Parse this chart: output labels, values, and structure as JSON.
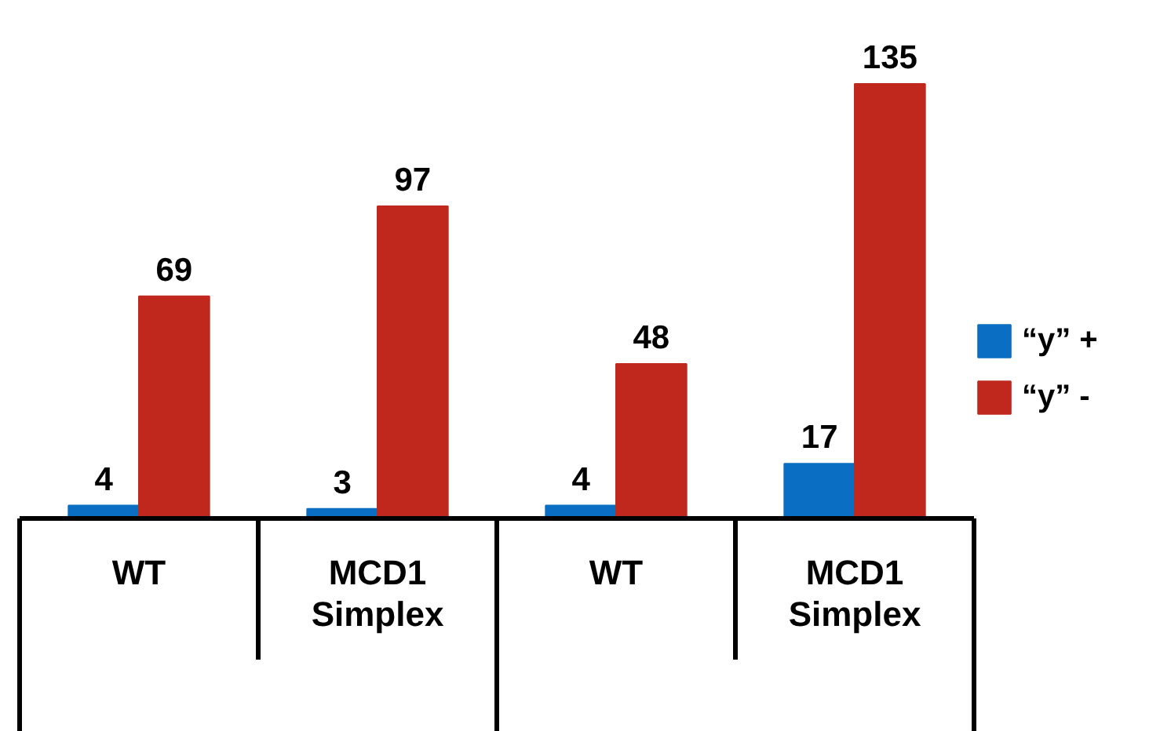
{
  "chart_data": {
    "type": "bar",
    "categories": [
      "WT",
      "MCD1\nSimplex",
      "WT",
      "MCD1\nSimplex"
    ],
    "series": [
      {
        "name": "“y” +",
        "color": "#0a6fc2",
        "values": [
          4,
          3,
          4,
          17
        ]
      },
      {
        "name": "“y” -",
        "color": "#c0281e",
        "values": [
          69,
          97,
          48,
          135
        ]
      }
    ],
    "data_labels": true,
    "legend": "right",
    "grid": false
  }
}
